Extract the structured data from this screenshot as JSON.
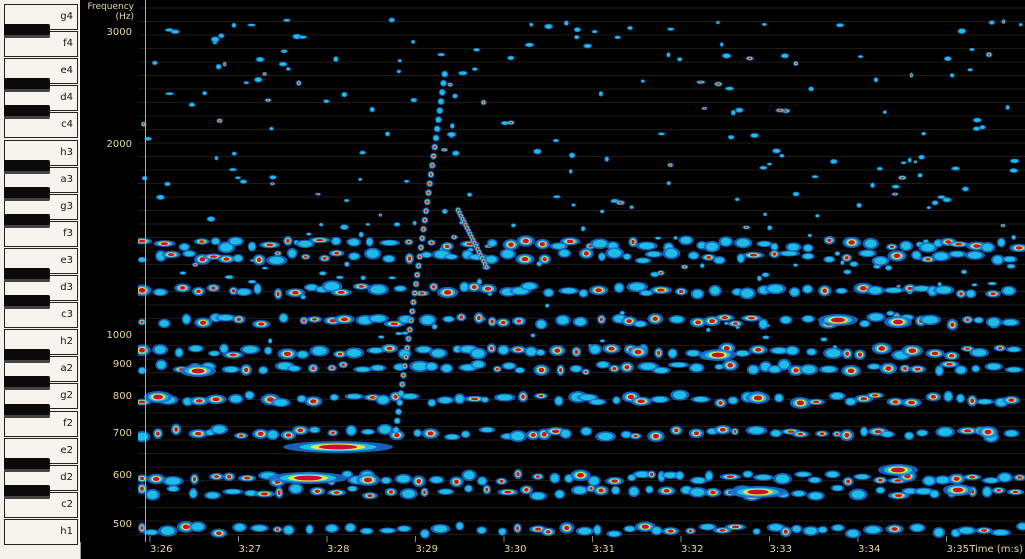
{
  "keyboard": {
    "keys": [
      "g4",
      "f4",
      "e4",
      "d4",
      "c4",
      "h3",
      "a3",
      "g3",
      "f3",
      "e3",
      "d3",
      "c3",
      "h2",
      "a2",
      "g2",
      "f2",
      "e2",
      "d2",
      "c2",
      "h1"
    ]
  },
  "freq_axis": {
    "title_line1": "Frequency",
    "title_line2": "(Hz)",
    "labels": [
      "3000",
      "2000",
      "1000",
      "900",
      "800",
      "700",
      "600",
      "500"
    ]
  },
  "time_axis": {
    "labels": [
      "3:26",
      "3:27",
      "3:28",
      "3:29",
      "3:30",
      "3:31",
      "3:32",
      "3:33",
      "3:34",
      "3:35"
    ],
    "unit": "Time (m:s)"
  },
  "colors": {
    "grid": "#3a3a2a",
    "blob_outer": "#1a6fd6",
    "blob_mid": "#1fc8e8",
    "blob_hot": "#f2e640",
    "blob_core": "#c8102e"
  }
}
